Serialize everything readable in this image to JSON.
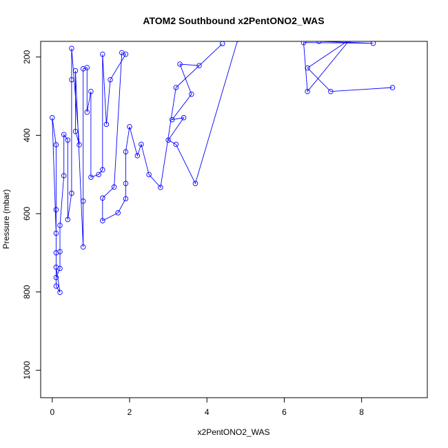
{
  "chart_data": {
    "type": "line",
    "title": "ATOM2 Southbound x2PentONO2_WAS",
    "xlabel": "x2PentONO2_WAS",
    "ylabel": "Pressure (mbar)",
    "xlim": [
      -0.3,
      9.7
    ],
    "ylim": [
      1070,
      160
    ],
    "y_reversed": true,
    "xticks": [
      0,
      2,
      4,
      6,
      8
    ],
    "yticks": [
      200,
      400,
      600,
      800,
      1000
    ],
    "grid": false,
    "color": "#0000ff",
    "marker": "open-circle",
    "series": [
      {
        "values": [
          [
            8.8,
            278
          ],
          [
            7.2,
            288
          ],
          [
            6.6,
            228
          ],
          [
            7.7,
            155
          ],
          [
            6.6,
            288
          ],
          [
            6.5,
            163
          ],
          [
            8.3,
            165
          ],
          [
            6.9,
            160
          ],
          [
            4.8,
            155
          ],
          [
            3.7,
            523
          ],
          [
            3.2,
            423
          ],
          [
            3.0,
            412
          ],
          [
            3.4,
            355
          ],
          [
            3.1,
            360
          ],
          [
            3.6,
            295
          ],
          [
            3.3,
            218
          ],
          [
            3.8,
            222
          ],
          [
            4.4,
            166
          ],
          [
            3.2,
            278
          ],
          [
            2.8,
            533
          ],
          [
            2.5,
            500
          ],
          [
            2.3,
            423
          ],
          [
            2.2,
            452
          ],
          [
            2.0,
            378
          ],
          [
            1.9,
            442
          ],
          [
            1.9,
            523
          ],
          [
            1.9,
            562
          ],
          [
            1.7,
            598
          ],
          [
            1.3,
            618
          ],
          [
            1.3,
            560
          ],
          [
            1.6,
            532
          ],
          [
            1.8,
            189
          ],
          [
            1.9,
            193
          ],
          [
            1.5,
            258
          ],
          [
            1.4,
            372
          ],
          [
            1.3,
            193
          ],
          [
            1.3,
            488
          ],
          [
            1.2,
            500
          ],
          [
            1.0,
            507
          ],
          [
            1.0,
            288
          ],
          [
            0.9,
            341
          ],
          [
            0.9,
            227
          ],
          [
            0.8,
            230
          ],
          [
            0.8,
            568
          ],
          [
            0.8,
            685
          ],
          [
            0.6,
            235
          ],
          [
            0.6,
            390
          ],
          [
            0.7,
            424
          ],
          [
            0.5,
            178
          ],
          [
            0.5,
            258
          ],
          [
            0.5,
            548
          ],
          [
            0.4,
            615
          ],
          [
            0.4,
            412
          ],
          [
            0.3,
            398
          ],
          [
            0.3,
            503
          ],
          [
            0.2,
            630
          ],
          [
            0.2,
            697
          ],
          [
            0.2,
            740
          ],
          [
            0.1,
            763
          ],
          [
            0.1,
            737
          ],
          [
            0.2,
            801
          ],
          [
            0.1,
            785
          ],
          [
            0.1,
            700
          ],
          [
            0.1,
            590
          ],
          [
            0.1,
            424
          ],
          [
            0.0,
            355
          ],
          [
            0.1,
            650
          ]
        ]
      }
    ]
  }
}
